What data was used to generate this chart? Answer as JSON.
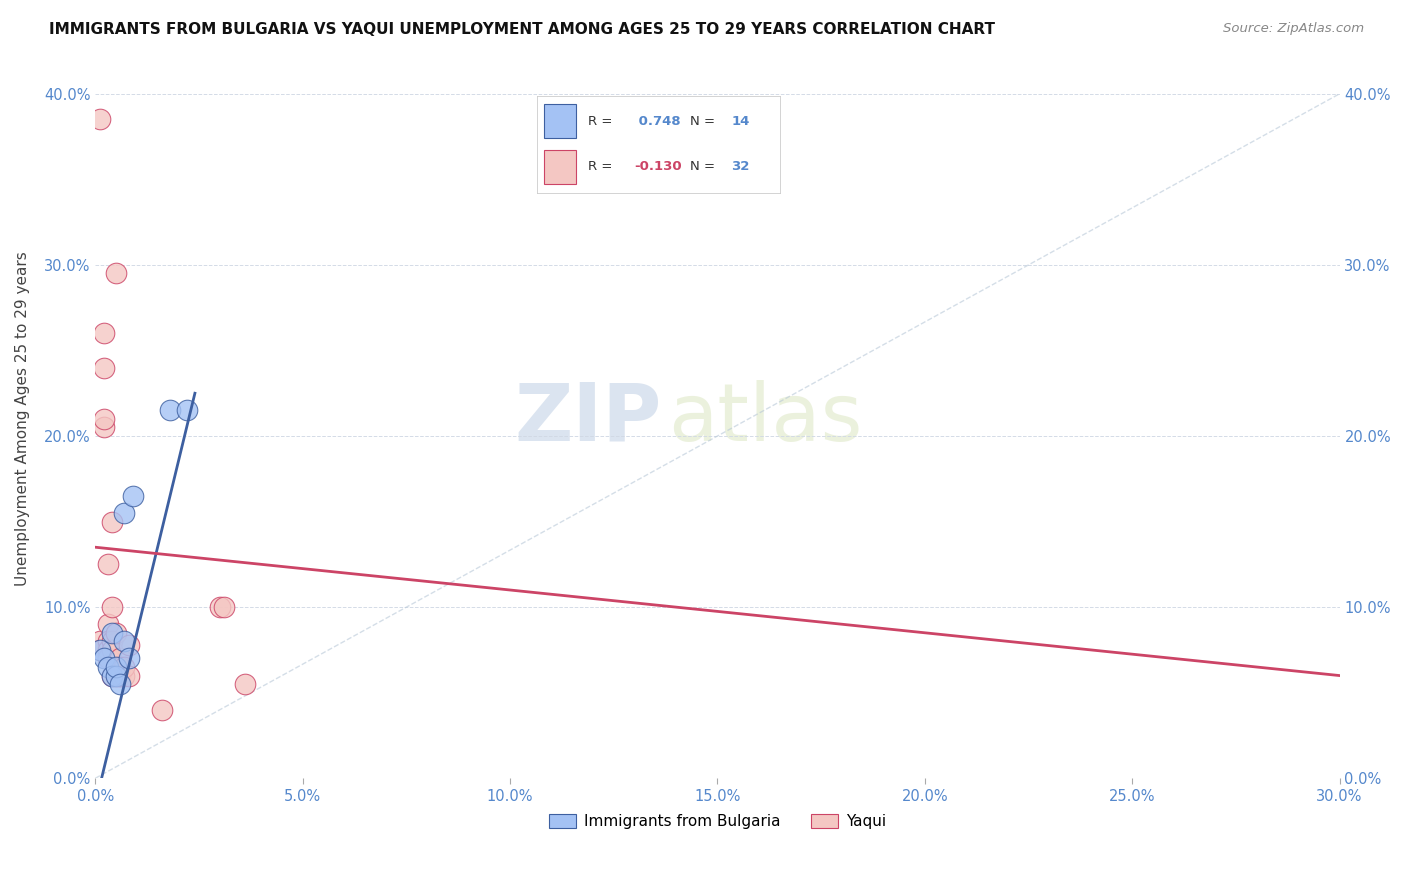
{
  "title": "IMMIGRANTS FROM BULGARIA VS YAQUI UNEMPLOYMENT AMONG AGES 25 TO 29 YEARS CORRELATION CHART",
  "source": "Source: ZipAtlas.com",
  "xlim": [
    0.0,
    0.3
  ],
  "ylim": [
    0.0,
    0.42
  ],
  "ylabel": "Unemployment Among Ages 25 to 29 years",
  "legend_label1": "Immigrants from Bulgaria",
  "legend_label2": "Yaqui",
  "R1": 0.748,
  "N1": 14,
  "R2": -0.13,
  "N2": 32,
  "color_blue": "#a4c2f4",
  "color_pink": "#f4c7c3",
  "color_blue_dark": "#3d5fa0",
  "color_pink_dark": "#cc4466",
  "color_dashed": "#b8c8d8",
  "watermark_zip": "ZIP",
  "watermark_atlas": "atlas",
  "blue_dots_x": [
    0.001,
    0.002,
    0.003,
    0.004,
    0.004,
    0.005,
    0.005,
    0.006,
    0.007,
    0.007,
    0.008,
    0.009,
    0.018,
    0.022
  ],
  "blue_dots_y": [
    0.075,
    0.07,
    0.065,
    0.06,
    0.085,
    0.06,
    0.065,
    0.055,
    0.08,
    0.155,
    0.07,
    0.165,
    0.215,
    0.215
  ],
  "pink_dots_x": [
    0.001,
    0.001,
    0.001,
    0.002,
    0.002,
    0.002,
    0.002,
    0.003,
    0.003,
    0.003,
    0.003,
    0.003,
    0.004,
    0.004,
    0.004,
    0.004,
    0.004,
    0.005,
    0.005,
    0.005,
    0.006,
    0.006,
    0.006,
    0.006,
    0.007,
    0.007,
    0.008,
    0.008,
    0.016,
    0.03,
    0.031,
    0.036
  ],
  "pink_dots_y": [
    0.385,
    0.08,
    0.075,
    0.26,
    0.24,
    0.205,
    0.21,
    0.125,
    0.09,
    0.08,
    0.075,
    0.07,
    0.15,
    0.1,
    0.08,
    0.075,
    0.06,
    0.06,
    0.085,
    0.295,
    0.07,
    0.065,
    0.06,
    0.06,
    0.06,
    0.065,
    0.06,
    0.078,
    0.04,
    0.1,
    0.1,
    0.055
  ],
  "blue_line_x": [
    -0.001,
    0.024
  ],
  "blue_line_y": [
    -0.025,
    0.225
  ],
  "pink_line_x": [
    0.0,
    0.3
  ],
  "pink_line_y": [
    0.135,
    0.06
  ],
  "dashed_line_x": [
    0.0,
    0.3
  ],
  "dashed_line_y": [
    0.0,
    0.4
  ],
  "xticks": [
    0.0,
    0.05,
    0.1,
    0.15,
    0.2,
    0.25,
    0.3
  ],
  "yticks": [
    0.0,
    0.1,
    0.2,
    0.3,
    0.4
  ]
}
